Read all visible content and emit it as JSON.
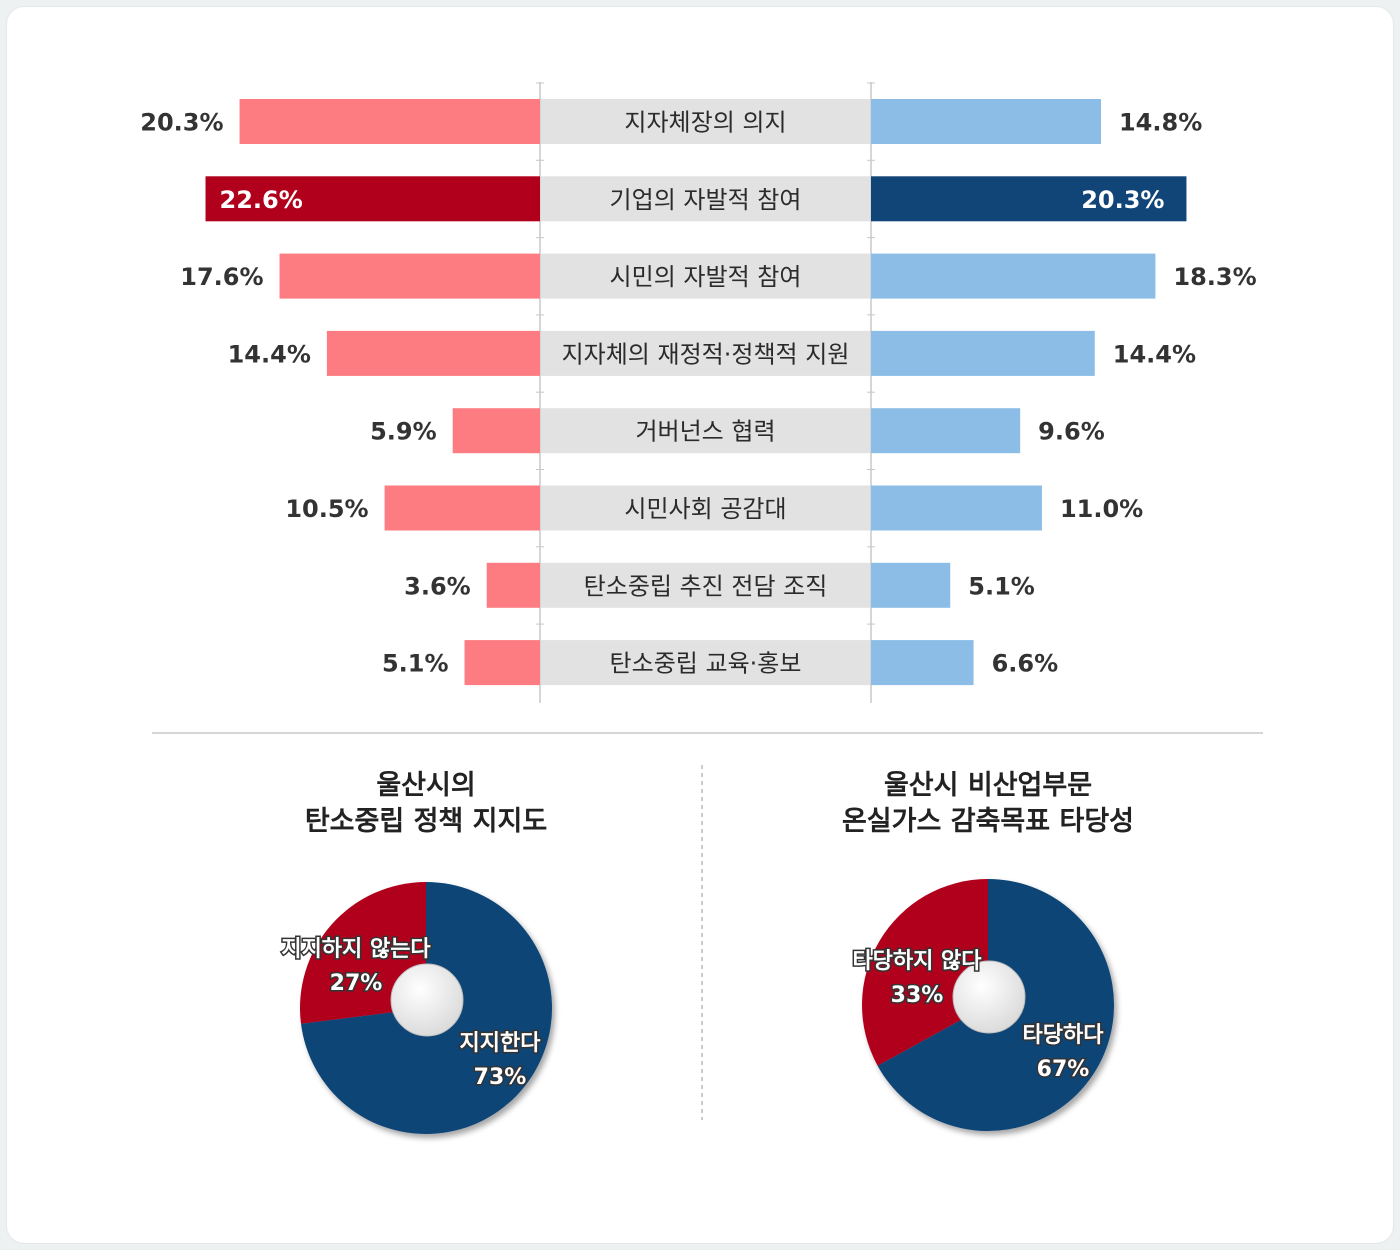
{
  "chart_data": [
    {
      "type": "bar",
      "orientation": "horizontal-butterfly",
      "categories": [
        "지자체장의 의지",
        "기업의 자발적 참여",
        "시민의 자발적 참여",
        "지자체의 재정적·정책적 지원",
        "거버넌스 협력",
        "시민사회 공감대",
        "탄소중립 추진 전담 조직",
        "탄소중립 교육·홍보"
      ],
      "series": [
        {
          "values": [
            20.3,
            22.6,
            17.6,
            14.4,
            5.9,
            10.5,
            3.6,
            5.1
          ],
          "labels": [
            "20.3%",
            "22.6%",
            "17.6%",
            "14.4%",
            "5.9%",
            "10.5%",
            "3.6%",
            "5.1%"
          ],
          "color": "#fc7c81",
          "highlight_color": "#b1001c",
          "highlight_index": 1
        },
        {
          "values": [
            14.8,
            20.3,
            18.3,
            14.4,
            9.6,
            11.0,
            5.1,
            6.6
          ],
          "labels": [
            "14.8%",
            "20.3%",
            "18.3%",
            "14.4%",
            "9.6%",
            "11.0%",
            "5.1%",
            "6.6%"
          ],
          "color": "#8bbde6",
          "highlight_color": "#114577",
          "highlight_index": 1
        }
      ],
      "xlim": [
        0,
        25
      ]
    },
    {
      "type": "pie",
      "style": "donut",
      "title_lines": [
        "울산시의",
        "탄소중립 정책 지지도"
      ],
      "slices": [
        {
          "label": "지지한다",
          "value": 73,
          "value_label": "73%",
          "color": "#114577"
        },
        {
          "label": "지지하지 않는다",
          "value": 27,
          "value_label": "27%",
          "color": "#b1001c"
        }
      ]
    },
    {
      "type": "pie",
      "style": "donut",
      "title_lines": [
        "울산시 비산업부문",
        "온실가스 감축목표 타당성"
      ],
      "slices": [
        {
          "label": "타당하다",
          "value": 67,
          "value_label": "67%",
          "color": "#114577"
        },
        {
          "label": "타당하지 않다",
          "value": 33,
          "value_label": "33%",
          "color": "#b1001c"
        }
      ]
    }
  ],
  "colors": {
    "category_bg": "#e2e2e2",
    "divider": "#c8c8c8"
  }
}
